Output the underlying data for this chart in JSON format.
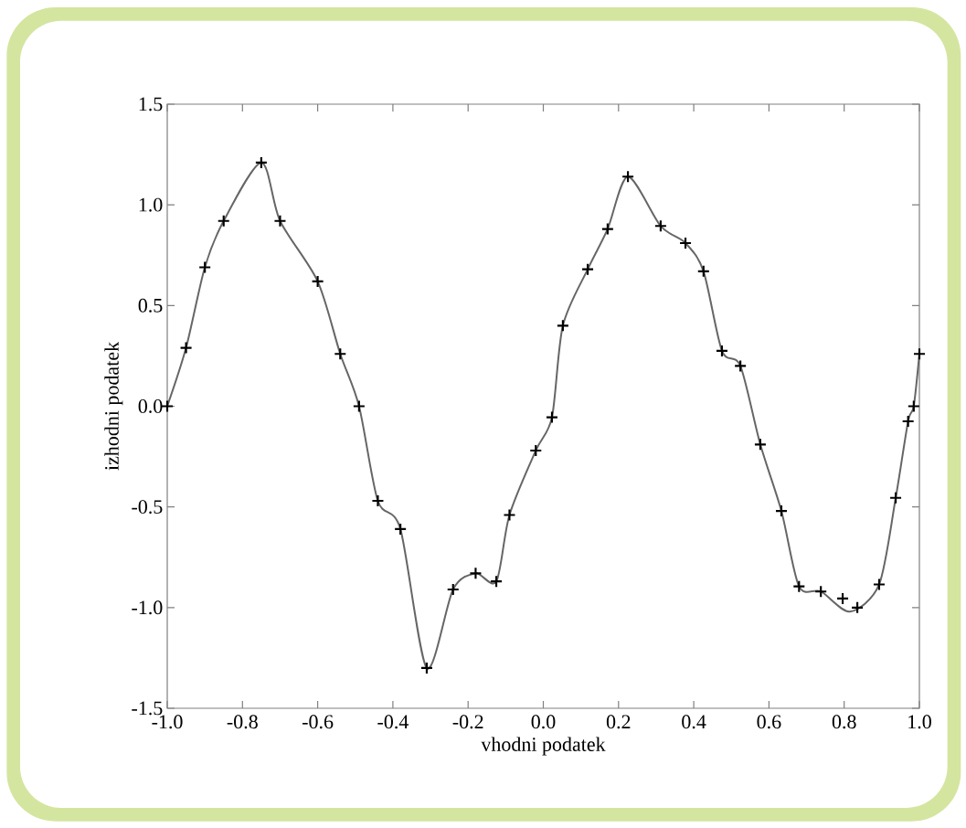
{
  "chart_data": {
    "type": "line",
    "xlabel": "vhodni podatek",
    "ylabel": "izhodni podatek",
    "xlim": [
      -1.0,
      1.0
    ],
    "ylim": [
      -1.5,
      1.5
    ],
    "xticks": [
      {
        "value": -1.0,
        "label": "-1.0"
      },
      {
        "value": -0.8,
        "label": "-0.8"
      },
      {
        "value": -0.6,
        "label": "-0.6"
      },
      {
        "value": -0.4,
        "label": "-0.4"
      },
      {
        "value": -0.2,
        "label": "-0.2"
      },
      {
        "value": 0.0,
        "label": "0.0"
      },
      {
        "value": 0.2,
        "label": "0.2"
      },
      {
        "value": 0.4,
        "label": "0.4"
      },
      {
        "value": 0.6,
        "label": "0.6"
      },
      {
        "value": 0.8,
        "label": "0.8"
      },
      {
        "value": 1.0,
        "label": "1.0"
      }
    ],
    "yticks": [
      {
        "value": -1.5,
        "label": "-1.5"
      },
      {
        "value": -1.0,
        "label": "-1.0"
      },
      {
        "value": -0.5,
        "label": "-0.5"
      },
      {
        "value": 0.0,
        "label": "0.0"
      },
      {
        "value": 0.5,
        "label": "0.5"
      },
      {
        "value": 1.0,
        "label": "1.0"
      },
      {
        "value": 1.5,
        "label": "1.5"
      }
    ],
    "grid": false,
    "series": [
      {
        "color": "#666666",
        "marker": "none",
        "line_style": "solid",
        "x": [
          -1.0,
          -0.95,
          -0.9,
          -0.85,
          -0.75,
          -0.7,
          -0.6,
          -0.54,
          -0.49,
          -0.44,
          -0.38,
          -0.31,
          -0.24,
          -0.18,
          -0.125,
          -0.09,
          -0.02,
          0.023,
          0.052,
          0.118,
          0.171,
          0.225,
          0.312,
          0.378,
          0.426,
          0.475,
          0.524,
          0.577,
          0.633,
          0.68,
          0.738,
          0.815,
          0.893,
          0.937,
          0.97,
          0.985,
          1.0
        ],
        "values": [
          0.0,
          0.29,
          0.69,
          0.92,
          1.21,
          0.92,
          0.62,
          0.26,
          0.0,
          -0.47,
          -0.61,
          -1.3,
          -0.91,
          -0.83,
          -0.87,
          -0.54,
          -0.22,
          -0.055,
          0.4,
          0.68,
          0.88,
          1.14,
          0.895,
          0.81,
          0.67,
          0.275,
          0.2,
          -0.19,
          -0.52,
          -0.895,
          -0.92,
          -1.02,
          -0.885,
          -0.455,
          -0.075,
          0.0,
          0.26
        ]
      },
      {
        "type": "scatter",
        "color": "#000000",
        "marker": "cross",
        "x": [
          -1.0,
          -0.95,
          -0.9,
          -0.85,
          -0.75,
          -0.7,
          -0.6,
          -0.54,
          -0.49,
          -0.44,
          -0.38,
          -0.31,
          -0.24,
          -0.18,
          -0.125,
          -0.09,
          -0.02,
          0.023,
          0.052,
          0.118,
          0.171,
          0.225,
          0.312,
          0.378,
          0.426,
          0.475,
          0.524,
          0.577,
          0.633,
          0.68,
          0.738,
          0.796,
          0.835,
          0.893,
          0.937,
          0.97,
          0.985,
          1.0
        ],
        "values": [
          0.0,
          0.29,
          0.69,
          0.92,
          1.21,
          0.92,
          0.62,
          0.26,
          0.0,
          -0.47,
          -0.61,
          -1.3,
          -0.91,
          -0.83,
          -0.87,
          -0.54,
          -0.22,
          -0.055,
          0.4,
          0.68,
          0.88,
          1.14,
          0.895,
          0.81,
          0.67,
          0.275,
          0.2,
          -0.19,
          -0.52,
          -0.895,
          -0.92,
          -0.955,
          -1.0,
          -0.885,
          -0.455,
          -0.075,
          0.0,
          0.26
        ]
      }
    ]
  }
}
